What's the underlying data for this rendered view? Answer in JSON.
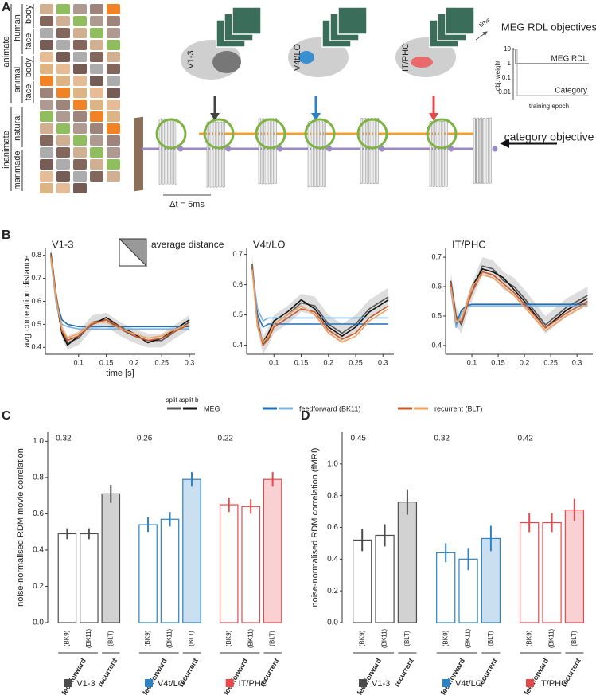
{
  "panel_a": {
    "label": "A",
    "category_labels": [
      "animate",
      "human",
      "body",
      "face",
      "animal",
      "body",
      "face",
      "inanimate",
      "natural",
      "manmade"
    ],
    "regions": [
      "V1-3",
      "V4t/LO",
      "IT/PHC"
    ],
    "time": "time",
    "dt": "Δt = 5ms",
    "rdl_title": "MEG RDL objectives",
    "rdl_curves": [
      "MEG RDL",
      "Category"
    ],
    "rdl_ylabel": "obj. weight",
    "rdl_xlabel": "training epoch",
    "rdl_yticks": [
      10,
      1,
      0.1,
      0.01
    ],
    "category_objective": "category objective"
  },
  "chart_data": [
    {
      "type": "line",
      "panel_label": "B",
      "title": "V1-3",
      "ylabel": "avg correlation distance",
      "xlabel": "time [s]",
      "inset_label": "average distance",
      "split_labels": [
        "split a",
        "split b"
      ],
      "x": [
        0.05,
        0.06,
        0.07,
        0.08,
        0.1,
        0.125,
        0.15,
        0.175,
        0.2,
        0.225,
        0.25,
        0.275,
        0.3
      ],
      "xlim": [
        0.04,
        0.31
      ],
      "ylim": [
        0.37,
        0.83
      ],
      "xticks": [
        0.1,
        0.15,
        0.2,
        0.25,
        0.3
      ],
      "yticks": [
        0.4,
        0.5,
        0.6,
        0.7,
        0.8
      ],
      "series": [
        {
          "name": "MEG",
          "colors": [
            "#555555",
            "#111111"
          ],
          "values": [
            [
              0.81,
              0.62,
              0.47,
              0.42,
              0.44,
              0.51,
              0.52,
              0.48,
              0.45,
              0.43,
              0.43,
              0.47,
              0.51
            ],
            [
              0.8,
              0.6,
              0.46,
              0.41,
              0.45,
              0.5,
              0.53,
              0.49,
              0.46,
              0.42,
              0.44,
              0.48,
              0.52
            ]
          ]
        },
        {
          "name": "feedforward (BK11)",
          "colors": [
            "#1f6fb5",
            "#7db3e0"
          ],
          "values": [
            [
              0.79,
              0.6,
              0.52,
              0.5,
              0.49,
              0.49,
              0.49,
              0.49,
              0.49,
              0.49,
              0.49,
              0.49,
              0.49
            ],
            [
              0.78,
              0.58,
              0.5,
              0.49,
              0.48,
              0.48,
              0.48,
              0.48,
              0.48,
              0.48,
              0.48,
              0.48,
              0.48
            ]
          ]
        },
        {
          "name": "recurrent (BLT)",
          "colors": [
            "#c8582a",
            "#f0a060"
          ],
          "values": [
            [
              0.8,
              0.61,
              0.47,
              0.43,
              0.45,
              0.5,
              0.52,
              0.49,
              0.45,
              0.43,
              0.44,
              0.47,
              0.5
            ],
            [
              0.79,
              0.6,
              0.48,
              0.44,
              0.46,
              0.51,
              0.51,
              0.48,
              0.46,
              0.44,
              0.45,
              0.48,
              0.5
            ]
          ]
        }
      ]
    },
    {
      "type": "line",
      "title": "V4t/LO",
      "x": [
        0.06,
        0.07,
        0.08,
        0.09,
        0.1,
        0.125,
        0.15,
        0.175,
        0.2,
        0.225,
        0.25,
        0.275,
        0.31
      ],
      "xlim": [
        0.05,
        0.32
      ],
      "ylim": [
        0.37,
        0.72
      ],
      "xticks": [
        0.1,
        0.15,
        0.2,
        0.25,
        0.3
      ],
      "yticks": [
        0.4,
        0.5,
        0.6,
        0.7
      ],
      "series": [
        {
          "name": "MEG",
          "colors": [
            "#555555",
            "#111111"
          ],
          "values": [
            [
              0.67,
              0.48,
              0.4,
              0.43,
              0.47,
              0.5,
              0.54,
              0.53,
              0.47,
              0.44,
              0.47,
              0.52,
              0.56
            ],
            [
              0.66,
              0.46,
              0.41,
              0.44,
              0.48,
              0.51,
              0.55,
              0.52,
              0.46,
              0.43,
              0.46,
              0.51,
              0.55
            ]
          ]
        },
        {
          "name": "feedforward (BK11)",
          "colors": [
            "#1f6fb5",
            "#7db3e0"
          ],
          "values": [
            [
              0.66,
              0.5,
              0.46,
              0.47,
              0.47,
              0.47,
              0.47,
              0.47,
              0.47,
              0.47,
              0.47,
              0.47,
              0.47
            ],
            [
              0.65,
              0.52,
              0.48,
              0.49,
              0.49,
              0.49,
              0.49,
              0.49,
              0.49,
              0.49,
              0.49,
              0.49,
              0.49
            ]
          ]
        },
        {
          "name": "recurrent (BLT)",
          "colors": [
            "#c8582a",
            "#f0a060"
          ],
          "values": [
            [
              0.66,
              0.47,
              0.4,
              0.42,
              0.46,
              0.49,
              0.52,
              0.51,
              0.45,
              0.42,
              0.44,
              0.49,
              0.53
            ],
            [
              0.65,
              0.46,
              0.41,
              0.43,
              0.47,
              0.5,
              0.53,
              0.5,
              0.44,
              0.41,
              0.43,
              0.48,
              0.52
            ]
          ]
        }
      ]
    },
    {
      "type": "line",
      "title": "IT/PHC",
      "x": [
        0.06,
        0.07,
        0.08,
        0.09,
        0.1,
        0.12,
        0.14,
        0.16,
        0.18,
        0.2,
        0.24,
        0.28,
        0.32
      ],
      "xlim": [
        0.05,
        0.33
      ],
      "ylim": [
        0.37,
        0.73
      ],
      "xticks": [
        0.1,
        0.15,
        0.2,
        0.25,
        0.3
      ],
      "yticks": [
        0.4,
        0.5,
        0.6,
        0.7
      ],
      "series": [
        {
          "name": "MEG",
          "colors": [
            "#555555",
            "#111111"
          ],
          "values": [
            [
              0.62,
              0.5,
              0.47,
              0.53,
              0.58,
              0.67,
              0.66,
              0.62,
              0.6,
              0.56,
              0.47,
              0.53,
              0.57
            ],
            [
              0.61,
              0.49,
              0.48,
              0.54,
              0.6,
              0.66,
              0.65,
              0.63,
              0.59,
              0.55,
              0.46,
              0.52,
              0.56
            ]
          ]
        },
        {
          "name": "feedforward (BK11)",
          "colors": [
            "#1f6fb5",
            "#7db3e0"
          ],
          "values": [
            [
              0.6,
              0.47,
              0.52,
              0.535,
              0.54,
              0.54,
              0.54,
              0.54,
              0.54,
              0.54,
              0.54,
              0.54,
              0.54
            ],
            [
              0.59,
              0.46,
              0.51,
              0.53,
              0.535,
              0.535,
              0.535,
              0.535,
              0.535,
              0.535,
              0.535,
              0.535,
              0.535
            ]
          ]
        },
        {
          "name": "recurrent (BLT)",
          "colors": [
            "#c8582a",
            "#f0a060"
          ],
          "values": [
            [
              0.61,
              0.49,
              0.48,
              0.53,
              0.58,
              0.65,
              0.64,
              0.61,
              0.58,
              0.54,
              0.46,
              0.51,
              0.55
            ],
            [
              0.6,
              0.48,
              0.49,
              0.54,
              0.6,
              0.64,
              0.63,
              0.6,
              0.57,
              0.53,
              0.45,
              0.5,
              0.54
            ]
          ]
        }
      ]
    },
    {
      "type": "bar",
      "panel_label": "C",
      "ylabel": "noise-normalised RDM movie correlation",
      "categories": [
        "(BK9)",
        "(BK11)",
        "(BLT)"
      ],
      "architectures": [
        "feedforward",
        "recurrent"
      ],
      "ylim": [
        0,
        1.05
      ],
      "yticks": [
        {
          "value": 0,
          "label": "0.0"
        },
        0.2,
        0.4,
        0.6,
        0.8,
        {
          "value": 1,
          "label": "1.0"
        }
      ],
      "series": [
        {
          "name": "V1-3",
          "color": "#4d4d4d",
          "annotation": 0.32,
          "values": [
            0.49,
            0.49,
            0.71
          ],
          "errors": [
            0.03,
            0.03,
            0.05
          ]
        },
        {
          "name": "V4t/LO",
          "color": "#2b83c6",
          "annotation": 0.26,
          "values": [
            0.54,
            0.57,
            0.79
          ],
          "errors": [
            0.04,
            0.04,
            0.04
          ]
        },
        {
          "name": "IT/PHC",
          "color": "#e8484b",
          "annotation": 0.22,
          "values": [
            0.65,
            0.64,
            0.79
          ],
          "errors": [
            0.04,
            0.04,
            0.04
          ]
        }
      ]
    },
    {
      "type": "bar",
      "panel_label": "D",
      "ylabel": "noise-normalised RDM correlation (fMRI)",
      "categories": [
        "(BK9)",
        "(BK11)",
        "(BLT)"
      ],
      "architectures": [
        "feedforward",
        "recurrent"
      ],
      "ylim": [
        0,
        1.2
      ],
      "yticks": [
        {
          "value": 0,
          "label": "0.0"
        },
        0.2,
        0.4,
        0.6,
        0.8,
        {
          "value": 1,
          "label": "1.0"
        }
      ],
      "series": [
        {
          "name": "V1-3",
          "color": "#4d4d4d",
          "annotation": 0.45,
          "values": [
            0.52,
            0.55,
            0.76
          ],
          "errors": [
            0.07,
            0.07,
            0.08
          ]
        },
        {
          "name": "V4t/LO",
          "color": "#2b83c6",
          "annotation": 0.32,
          "values": [
            0.44,
            0.4,
            0.53
          ],
          "errors": [
            0.06,
            0.07,
            0.08
          ]
        },
        {
          "name": "IT/PHC",
          "color": "#e8484b",
          "annotation": 0.42,
          "values": [
            0.63,
            0.63,
            0.71
          ],
          "errors": [
            0.06,
            0.06,
            0.07
          ]
        }
      ]
    }
  ]
}
